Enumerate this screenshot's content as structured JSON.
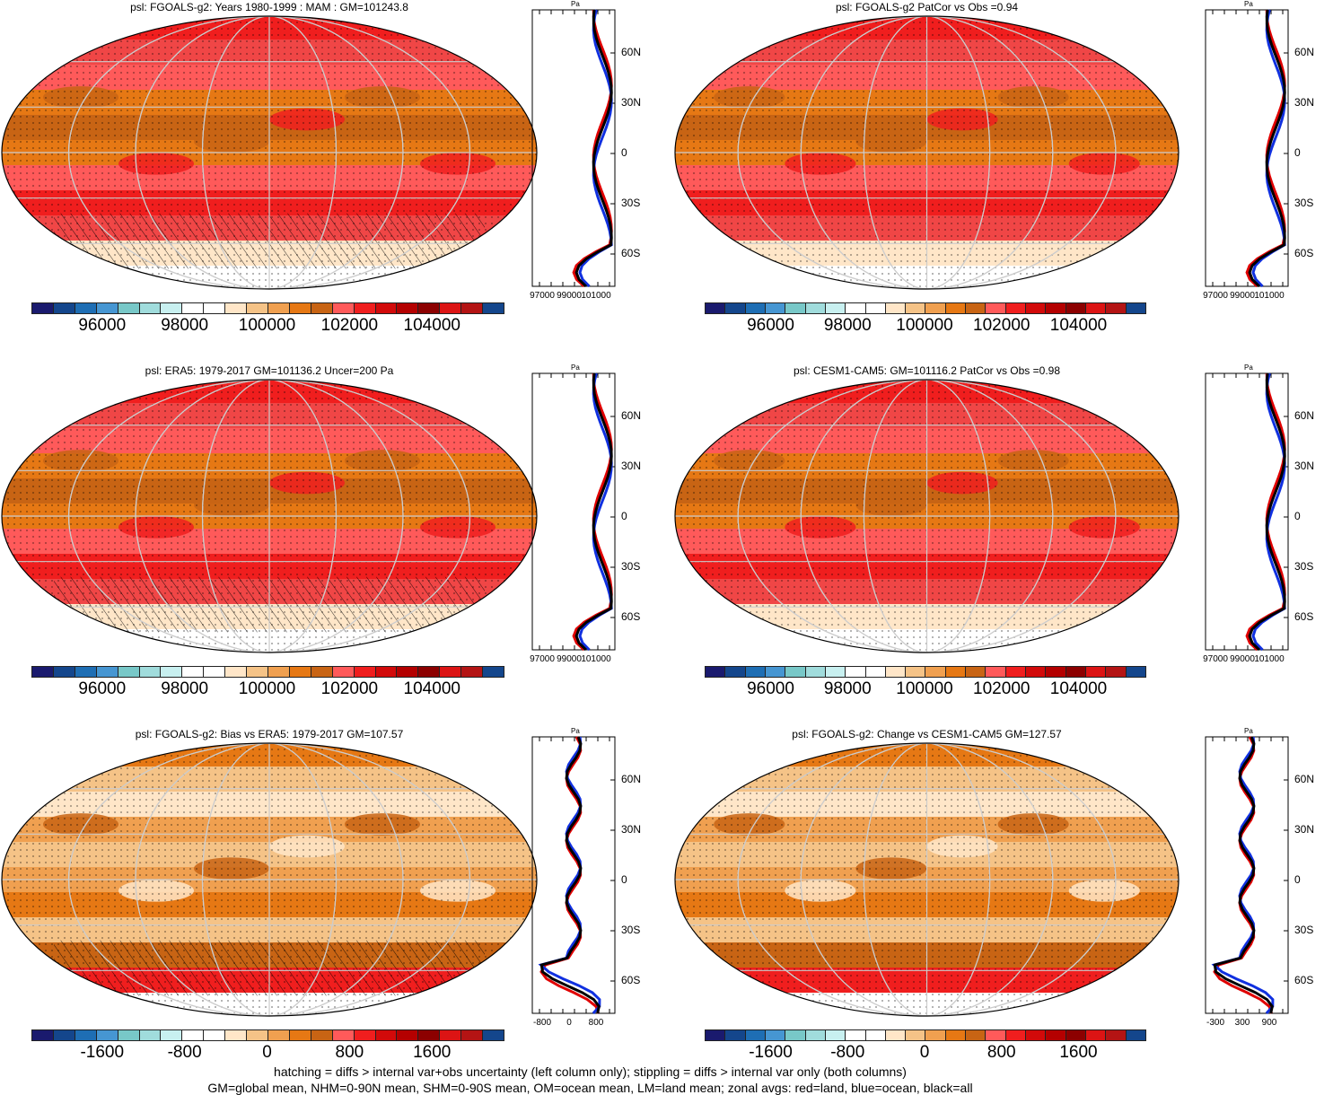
{
  "panels": [
    {
      "id": "p1",
      "title": "psl: FGOALS-g2: Years 1980-1999 : MAM : GM=101243.8",
      "colorbar_labels": [
        "96000",
        "98000",
        "100000",
        "102000",
        "104000"
      ],
      "zonal_unit": "Pa",
      "zonal_x_labels": [
        "97000",
        "99000",
        "101000"
      ],
      "lat_labels": [
        "60N",
        "30N",
        "0",
        "30S",
        "60S"
      ],
      "hatched": true
    },
    {
      "id": "p2",
      "title": "psl: FGOALS-g2 PatCor vs Obs =0.94",
      "colorbar_labels": [
        "96000",
        "98000",
        "100000",
        "102000",
        "104000"
      ],
      "zonal_unit": "Pa",
      "zonal_x_labels": [
        "97000",
        "99000",
        "101000"
      ],
      "lat_labels": [
        "60N",
        "30N",
        "0",
        "30S",
        "60S"
      ],
      "hatched": false
    },
    {
      "id": "p3",
      "title": "psl: ERA5: 1979-2017 GM=101136.2 Uncer=200 Pa",
      "colorbar_labels": [
        "96000",
        "98000",
        "100000",
        "102000",
        "104000"
      ],
      "zonal_unit": "Pa",
      "zonal_x_labels": [
        "97000",
        "99000",
        "101000"
      ],
      "lat_labels": [
        "60N",
        "30N",
        "0",
        "30S",
        "60S"
      ],
      "hatched": true
    },
    {
      "id": "p4",
      "title": "psl: CESM1-CAM5: GM=101116.2 PatCor vs Obs =0.98",
      "colorbar_labels": [
        "96000",
        "98000",
        "100000",
        "102000",
        "104000"
      ],
      "zonal_unit": "Pa",
      "zonal_x_labels": [
        "97000",
        "99000",
        "101000"
      ],
      "lat_labels": [
        "60N",
        "30N",
        "0",
        "30S",
        "60S"
      ],
      "hatched": false
    },
    {
      "id": "p5",
      "title": "psl: FGOALS-g2: Bias vs ERA5: 1979-2017 GM=107.57",
      "colorbar_labels": [
        "-1600",
        "-800",
        "0",
        "800",
        "1600"
      ],
      "zonal_unit": "Pa",
      "zonal_x_labels": [
        "-800",
        "0",
        "800"
      ],
      "lat_labels": [
        "60N",
        "30N",
        "0",
        "30S",
        "60S"
      ],
      "hatched": true
    },
    {
      "id": "p6",
      "title": "psl: FGOALS-g2: Change vs CESM1-CAM5 GM=127.57",
      "colorbar_labels": [
        "-1600",
        "-800",
        "0",
        "800",
        "1600"
      ],
      "zonal_unit": "Pa",
      "zonal_x_labels": [
        "-300",
        "300",
        "900"
      ],
      "lat_labels": [
        "60N",
        "30N",
        "0",
        "30S",
        "60S"
      ],
      "hatched": false
    }
  ],
  "colors": {
    "palette": [
      "#1a1a6e",
      "#14468c",
      "#1e6eb4",
      "#4696d2",
      "#78c8c8",
      "#a0dcdc",
      "#c8f0f0",
      "#ffffff",
      "#ffffff",
      "#ffe6c8",
      "#f5c387",
      "#f0a050",
      "#e67814",
      "#c86414",
      "#ff5a5a",
      "#f01e1e",
      "#d20a0a",
      "#b40000",
      "#8c0000",
      "#dc1414",
      "#b41414",
      "#14468c"
    ],
    "land_curve": "#e00000",
    "ocean_curve": "#1030e0",
    "all_curve": "#000000"
  },
  "footnote": [
    "hatching = diffs > internal var+obs uncertainty (left column only); stippling = diffs > internal var only (both columns)",
    "GM=global mean, NHM=0-90N mean, SHM=0-90S mean, OM=ocean mean, LM=land mean; zonal avgs: red=land, blue=ocean, black=all"
  ],
  "chart_data": [
    {
      "type": "heatmap",
      "title": "psl: FGOALS-g2: Years 1980-1999 : MAM : GM=101243.8",
      "colorbar_ticks": [
        96000,
        98000,
        100000,
        102000,
        104000
      ]
    },
    {
      "type": "heatmap",
      "title": "psl: FGOALS-g2 PatCor vs Obs =0.94",
      "colorbar_ticks": [
        96000,
        98000,
        100000,
        102000,
        104000
      ]
    },
    {
      "type": "heatmap",
      "title": "psl: ERA5: 1979-2017 GM=101136.2 Uncer=200 Pa",
      "colorbar_ticks": [
        96000,
        98000,
        100000,
        102000,
        104000
      ]
    },
    {
      "type": "heatmap",
      "title": "psl: CESM1-CAM5: GM=101116.2 PatCor vs Obs =0.98",
      "colorbar_ticks": [
        96000,
        98000,
        100000,
        102000,
        104000
      ]
    },
    {
      "type": "heatmap",
      "title": "psl: FGOALS-g2: Bias vs ERA5: 1979-2017 GM=107.57",
      "colorbar_ticks": [
        -1600,
        -800,
        0,
        800,
        1600
      ]
    },
    {
      "type": "heatmap",
      "title": "psl: FGOALS-g2: Change vs CESM1-CAM5 GM=127.57",
      "colorbar_ticks": [
        -1600,
        -800,
        0,
        800,
        1600
      ]
    }
  ]
}
